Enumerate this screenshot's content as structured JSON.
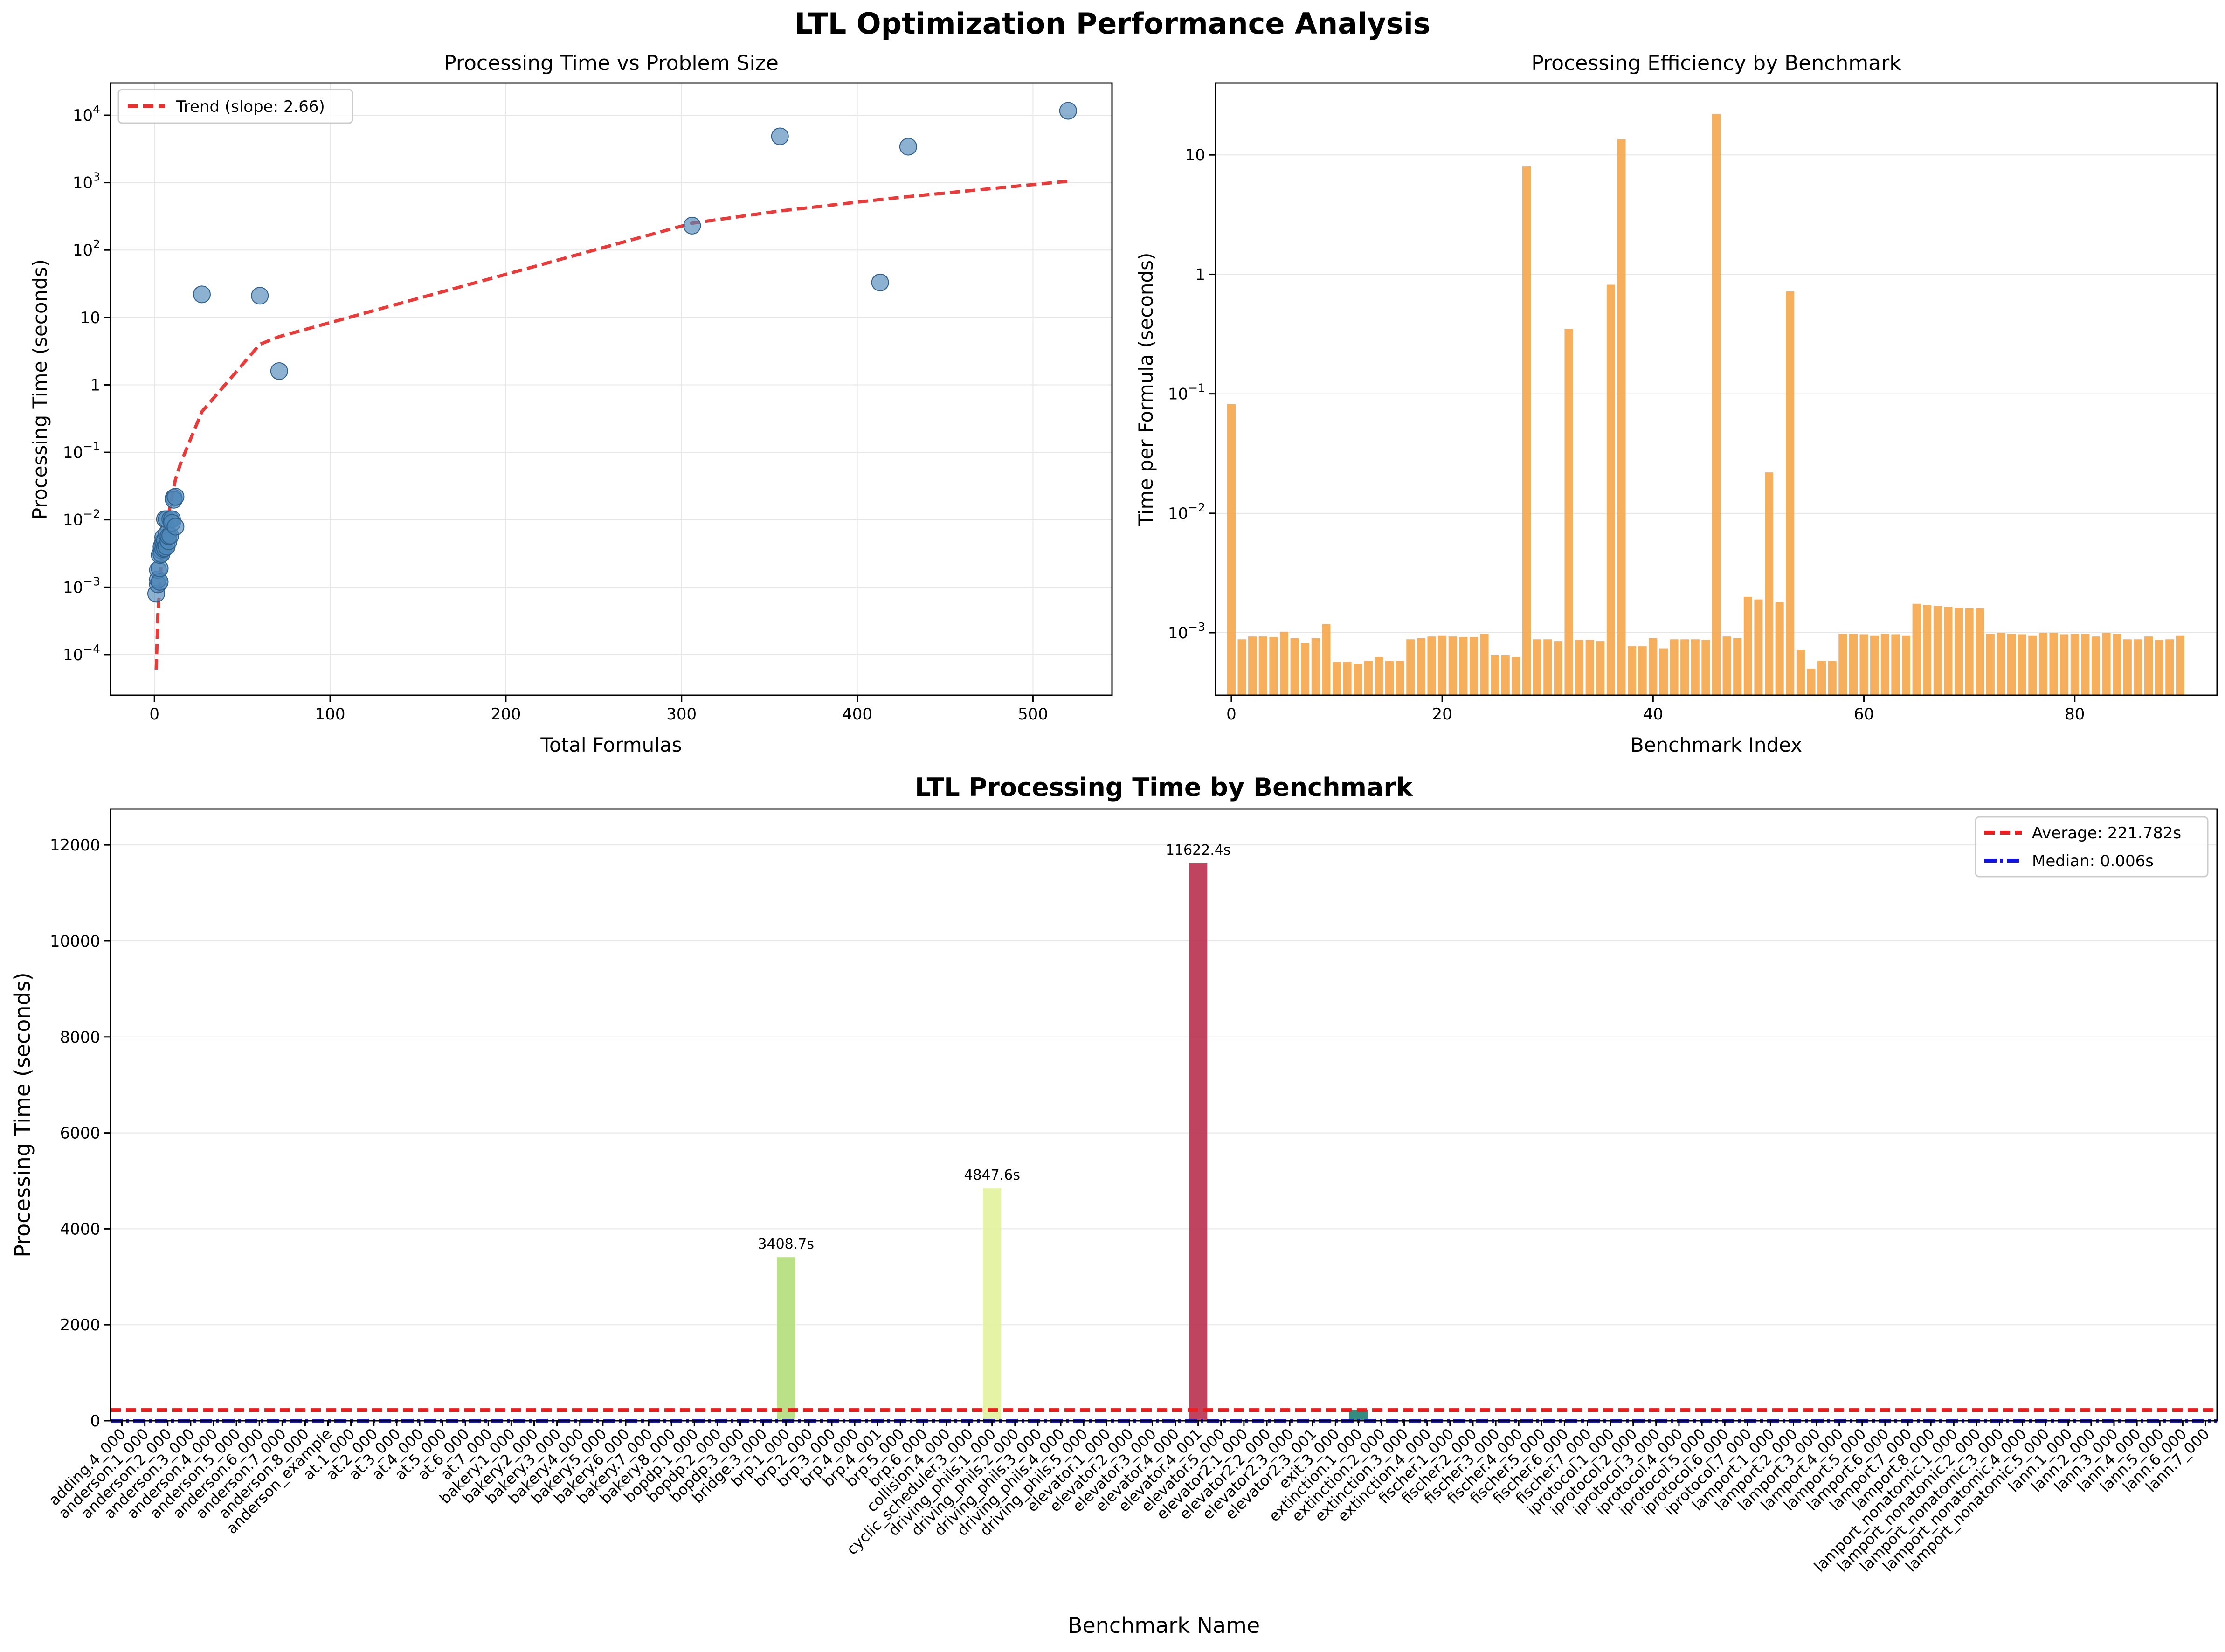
{
  "figure": {
    "title": "LTL Optimization Performance Analysis"
  },
  "chart_data": [
    {
      "type": "scatter",
      "title": "Processing Time vs Problem Size",
      "xlabel": "Total Formulas",
      "ylabel": "Processing Time (seconds)",
      "xlim": [
        -25,
        545
      ],
      "ylim": [
        2.5e-05,
        30000
      ],
      "yscale": "log",
      "grid": true,
      "legend": {
        "position": "top-left",
        "entries": [
          "Trend (slope: 2.66)"
        ]
      },
      "x_ticks": [
        0,
        100,
        200,
        300,
        400,
        500
      ],
      "y_ticks": [
        0.0001,
        0.001,
        0.01,
        0.1,
        1,
        10,
        100,
        1000,
        10000
      ],
      "series": [
        {
          "kind": "points",
          "color": "#4f87b8",
          "points": [
            [
              1,
              0.0008
            ],
            [
              2,
              0.0011
            ],
            [
              2,
              0.0013
            ],
            [
              2,
              0.0018
            ],
            [
              3,
              0.0012
            ],
            [
              3,
              0.0019
            ],
            [
              3,
              0.003
            ],
            [
              4,
              0.0035
            ],
            [
              4,
              0.004
            ],
            [
              4,
              0.0031
            ],
            [
              5,
              0.0045
            ],
            [
              5,
              0.0037
            ],
            [
              5,
              0.0048
            ],
            [
              5,
              0.0055
            ],
            [
              6,
              0.005
            ],
            [
              6,
              0.0102
            ],
            [
              6,
              0.0038
            ],
            [
              7,
              0.004
            ],
            [
              7,
              0.0062
            ],
            [
              7,
              0.0102
            ],
            [
              8,
              0.0048
            ],
            [
              8,
              0.0057
            ],
            [
              9,
              0.0102
            ],
            [
              9,
              0.0058
            ],
            [
              10,
              0.0102
            ],
            [
              10,
              0.009
            ],
            [
              11,
              0.0212
            ],
            [
              11,
              0.0198
            ],
            [
              12,
              0.022
            ],
            [
              12,
              0.0079
            ],
            [
              27,
              22
            ],
            [
              60,
              21
            ],
            [
              71,
              1.6
            ],
            [
              306,
              230
            ],
            [
              356,
              4848
            ],
            [
              413,
              33
            ],
            [
              429,
              3409
            ],
            [
              520,
              11622
            ]
          ]
        },
        {
          "kind": "line",
          "name": "Trend (slope: 2.66)",
          "color": "#e8302f",
          "points": [
            [
              1,
              6e-05
            ],
            [
              2,
              0.0004
            ],
            [
              4,
              0.0025
            ],
            [
              6,
              0.006
            ],
            [
              8,
              0.012
            ],
            [
              10,
              0.022
            ],
            [
              12,
              0.04
            ],
            [
              15,
              0.07
            ],
            [
              27,
              0.4
            ],
            [
              60,
              4
            ],
            [
              71,
              5.2
            ],
            [
              306,
              250
            ],
            [
              356,
              380
            ],
            [
              413,
              560
            ],
            [
              429,
              620
            ],
            [
              520,
              1050
            ]
          ]
        }
      ]
    },
    {
      "type": "bar",
      "title": "Processing Efficiency by Benchmark",
      "xlabel": "Benchmark Index",
      "ylabel": "Time per Formula (seconds)",
      "xlim": [
        -1.5,
        93.5
      ],
      "ylim": [
        0.0003,
        40
      ],
      "yscale": "log",
      "grid": true,
      "color": "#f5a64b",
      "x_ticks": [
        0,
        20,
        40,
        60,
        80
      ],
      "y_ticks": [
        0.001,
        0.01,
        0.1,
        1,
        10
      ],
      "values": [
        0.082,
        0.00088,
        0.00093,
        0.00093,
        0.00092,
        0.00102,
        0.0009,
        0.00082,
        0.0009,
        0.00118,
        0.00057,
        0.00057,
        0.00055,
        0.00058,
        0.00063,
        0.00058,
        0.00058,
        0.00088,
        0.0009,
        0.00093,
        0.00095,
        0.00093,
        0.00092,
        0.00092,
        0.00098,
        0.00065,
        0.00065,
        0.00063,
        8.0,
        0.00088,
        0.00088,
        0.00085,
        0.35,
        0.00087,
        0.00087,
        0.00085,
        0.82,
        13.5,
        0.00077,
        0.00077,
        0.0009,
        0.00074,
        0.00088,
        0.00088,
        0.00088,
        0.00087,
        22.0,
        0.00093,
        0.0009,
        0.002,
        0.0019,
        0.022,
        0.0018,
        0.72,
        0.00072,
        0.0005,
        0.00058,
        0.00058,
        0.00098,
        0.00098,
        0.00097,
        0.00095,
        0.00098,
        0.00097,
        0.00095,
        0.00175,
        0.0017,
        0.00168,
        0.00165,
        0.00162,
        0.0016,
        0.0016,
        0.00098,
        0.001,
        0.00098,
        0.00097,
        0.00095,
        0.001,
        0.001,
        0.00097,
        0.00098,
        0.00098,
        0.00093,
        0.001,
        0.00098,
        0.00088,
        0.00088,
        0.00093,
        0.00087,
        0.00088,
        0.00095
      ]
    },
    {
      "type": "bar",
      "title": "LTL Processing Time by Benchmark",
      "xlabel": "Benchmark Name",
      "ylabel": "Processing Time (seconds)",
      "ylim": [
        0,
        12750
      ],
      "y_ticks": [
        0,
        2000,
        4000,
        6000,
        8000,
        10000,
        12000
      ],
      "grid": true,
      "legend": {
        "position": "top-right",
        "entries": [
          "Average: 221.782s",
          "Median: 0.006s"
        ]
      },
      "reference_lines": [
        {
          "name": "Average: 221.782s",
          "value": 221.782,
          "color": "#ee1c1c",
          "style": "dashed"
        },
        {
          "name": "Median: 0.006s",
          "value": 0.006,
          "color": "#1414e6",
          "style": "dashdot"
        }
      ],
      "categories": [
        "adding.4_000",
        "anderson.1_000",
        "anderson.2_000",
        "anderson.3_000",
        "anderson.4_000",
        "anderson.5_000",
        "anderson.6_000",
        "anderson.7_000",
        "anderson.8_000",
        "anderson_example",
        "at.1_000",
        "at.2_000",
        "at.3_000",
        "at.4_000",
        "at.5_000",
        "at.6_000",
        "at.7_000",
        "bakery.1_000",
        "bakery.2_000",
        "bakery.3_000",
        "bakery.4_000",
        "bakery.5_000",
        "bakery.6_000",
        "bakery.7_000",
        "bakery.8_000",
        "bopdp.1_000",
        "bopdp.2_000",
        "bopdp.3_000",
        "bridge.3_000",
        "brp.1_000",
        "brp.2_000",
        "brp.3_000",
        "brp.4_000",
        "brp.4_001",
        "brp.5_000",
        "brp.6_000",
        "collision.4_000",
        "cyclic_scheduler.3_000",
        "driving_phils.1_000",
        "driving_phils.2_000",
        "driving_phils.3_000",
        "driving_phils.4_000",
        "driving_phils.5_000",
        "elevator.1_000",
        "elevator.2_000",
        "elevator.3_000",
        "elevator.4_000",
        "elevator.4_001",
        "elevator.5_000",
        "elevator2.1_000",
        "elevator2.2_000",
        "elevator2.3_000",
        "elevator2.3_001",
        "exit.3_000",
        "extinction.1_000",
        "extinction.2_000",
        "extinction.3_000",
        "extinction.4_000",
        "fischer.1_000",
        "fischer.2_000",
        "fischer.3_000",
        "fischer.4_000",
        "fischer.5_000",
        "fischer.6_000",
        "fischer.7_000",
        "iprotocol.1_000",
        "iprotocol.2_000",
        "iprotocol.3_000",
        "iprotocol.4_000",
        "iprotocol.5_000",
        "iprotocol.6_000",
        "iprotocol.7_000",
        "lamport.1_000",
        "lamport.2_000",
        "lamport.3_000",
        "lamport.4_000",
        "lamport.5_000",
        "lamport.6_000",
        "lamport.7_000",
        "lamport.8_000",
        "lamport_nonatomic.1_000",
        "lamport_nonatomic.2_000",
        "lamport_nonatomic.3_000",
        "lamport_nonatomic.4_000",
        "lamport_nonatomic.5_000",
        "lann.1_000",
        "lann.2_000",
        "lann.3_000",
        "lann.4_000",
        "lann.5_000",
        "lann.6_000",
        "lann.7_000"
      ],
      "values": [
        0.08,
        0.001,
        0.001,
        0.001,
        0.001,
        0.001,
        0.001,
        0.001,
        0.001,
        0.001,
        0.001,
        0.001,
        0.001,
        0.001,
        0.001,
        0.001,
        0.001,
        0.001,
        0.001,
        0.001,
        0.001,
        0.001,
        0.001,
        0.001,
        0.001,
        0.001,
        0.001,
        0.001,
        0.001,
        3408.7,
        0.001,
        0.001,
        0.001,
        0.001,
        0.001,
        0.001,
        0.001,
        0.001,
        4847.6,
        0.001,
        0.001,
        0.001,
        0.001,
        0.001,
        0.001,
        0.001,
        0.001,
        11622.4,
        0.001,
        0.001,
        0.001,
        0.001,
        0.001,
        0.001,
        230,
        0.001,
        0.001,
        0.001,
        0.001,
        0.001,
        0.001,
        0.001,
        0.001,
        0.001,
        0.001,
        0.001,
        0.001,
        0.001,
        0.001,
        0.001,
        0.001,
        0.001,
        0.001,
        0.001,
        0.001,
        0.001,
        0.001,
        0.001,
        0.001,
        0.001,
        0.001,
        0.001,
        0.001,
        0.001,
        0.001,
        0.001,
        0.001,
        0.001,
        0.001,
        0.001,
        0.001,
        0.001
      ],
      "bar_colors": {
        "29": "#b3de7a",
        "38": "#e2f29c",
        "47": "#b8304e",
        "54": "#1e7f72"
      },
      "data_labels": [
        {
          "index": 29,
          "text": "3408.7s"
        },
        {
          "index": 38,
          "text": "4847.6s"
        },
        {
          "index": 47,
          "text": "11622.4s"
        }
      ]
    }
  ]
}
